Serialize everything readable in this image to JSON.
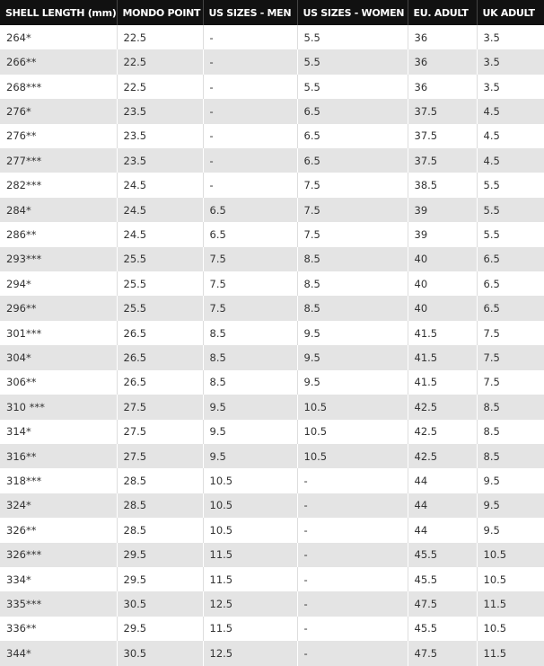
{
  "table": {
    "header": [
      "SHELL LENGTH (mm)",
      "MONDO POINT",
      "US SIZES - MEN",
      "US SIZES - WOMEN",
      "EU. ADULT",
      "UK ADULT"
    ],
    "rows": [
      [
        "264*",
        "22.5",
        "-",
        "5.5",
        "36",
        "3.5"
      ],
      [
        "266**",
        "22.5",
        "-",
        "5.5",
        "36",
        "3.5"
      ],
      [
        "268***",
        "22.5",
        "-",
        "5.5",
        "36",
        "3.5"
      ],
      [
        "276*",
        "23.5",
        "-",
        "6.5",
        "37.5",
        "4.5"
      ],
      [
        "276**",
        "23.5",
        "-",
        "6.5",
        "37.5",
        "4.5"
      ],
      [
        "277***",
        "23.5",
        "-",
        "6.5",
        "37.5",
        "4.5"
      ],
      [
        "282***",
        "24.5",
        "-",
        "7.5",
        "38.5",
        "5.5"
      ],
      [
        "284*",
        "24.5",
        "6.5",
        "7.5",
        "39",
        "5.5"
      ],
      [
        "286**",
        "24.5",
        "6.5",
        "7.5",
        "39",
        "5.5"
      ],
      [
        "293***",
        "25.5",
        "7.5",
        "8.5",
        "40",
        "6.5"
      ],
      [
        "294*",
        "25.5",
        "7.5",
        "8.5",
        "40",
        "6.5"
      ],
      [
        "296**",
        "25.5",
        "7.5",
        "8.5",
        "40",
        "6.5"
      ],
      [
        "301***",
        "26.5",
        "8.5",
        "9.5",
        "41.5",
        "7.5"
      ],
      [
        "304*",
        "26.5",
        "8.5",
        "9.5",
        "41.5",
        "7.5"
      ],
      [
        "306**",
        "26.5",
        "8.5",
        "9.5",
        "41.5",
        "7.5"
      ],
      [
        "310 ***",
        "27.5",
        "9.5",
        "10.5",
        "42.5",
        "8.5"
      ],
      [
        "314*",
        "27.5",
        "9.5",
        "10.5",
        "42.5",
        "8.5"
      ],
      [
        "316**",
        "27.5",
        "9.5",
        "10.5",
        "42.5",
        "8.5"
      ],
      [
        "318***",
        "28.5",
        "10.5",
        "-",
        "44",
        "9.5"
      ],
      [
        "324*",
        "28.5",
        "10.5",
        "-",
        "44",
        "9.5"
      ],
      [
        "326**",
        "28.5",
        "10.5",
        "-",
        "44",
        "9.5"
      ],
      [
        "326***",
        "29.5",
        "11.5",
        "-",
        "45.5",
        "10.5"
      ],
      [
        "334*",
        "29.5",
        "11.5",
        "-",
        "45.5",
        "10.5"
      ],
      [
        "335***",
        "30.5",
        "12.5",
        "-",
        "47.5",
        "11.5"
      ],
      [
        "336**",
        "29.5",
        "11.5",
        "-",
        "45.5",
        "10.5"
      ],
      [
        "344*",
        "30.5",
        "12.5",
        "-",
        "47.5",
        "11.5"
      ]
    ]
  }
}
